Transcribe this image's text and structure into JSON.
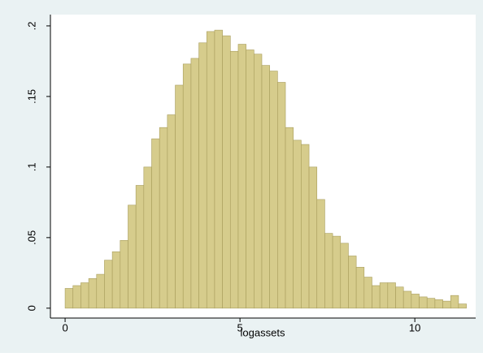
{
  "chart_data": {
    "type": "histogram",
    "xlabel": "logassets",
    "bins": [
      0,
      0.225,
      0.45,
      0.675,
      0.9,
      1.125,
      1.35,
      1.575,
      1.8,
      2.025,
      2.25,
      2.475,
      2.7,
      2.925,
      3.15,
      3.375,
      3.6,
      3.825,
      4.05,
      4.275,
      4.5,
      4.725,
      4.95,
      5.175,
      5.4,
      5.625,
      5.85,
      6.075,
      6.3,
      6.525,
      6.75,
      6.975,
      7.2,
      7.425,
      7.65,
      7.875,
      8.1,
      8.325,
      8.55,
      8.775,
      9,
      9.225,
      9.45,
      9.675,
      9.9,
      10.125,
      10.35,
      10.575,
      10.8,
      11.025,
      11.25,
      11.475
    ],
    "values": [
      0.014,
      0.016,
      0.018,
      0.021,
      0.024,
      0.034,
      0.04,
      0.048,
      0.073,
      0.087,
      0.1,
      0.12,
      0.128,
      0.137,
      0.158,
      0.173,
      0.177,
      0.188,
      0.196,
      0.197,
      0.193,
      0.182,
      0.187,
      0.183,
      0.18,
      0.172,
      0.168,
      0.16,
      0.128,
      0.119,
      0.116,
      0.1,
      0.077,
      0.053,
      0.051,
      0.046,
      0.037,
      0.029,
      0.022,
      0.016,
      0.018,
      0.018,
      0.015,
      0.012,
      0.01,
      0.008,
      0.007,
      0.006,
      0.005,
      0.009,
      0.003
    ],
    "color": "#d6cc8c",
    "xlim": [
      -0.42,
      11.74
    ],
    "xticks": [
      0,
      5,
      10
    ],
    "ylim": [
      -0.007,
      0.208
    ],
    "yticks": [
      0,
      {
        "value": 0.05,
        "label": ".05"
      },
      {
        "value": 0.1,
        "label": ".1"
      },
      {
        "value": 0.15,
        "label": ".15"
      },
      {
        "value": 0.2,
        "label": ".2"
      }
    ]
  }
}
